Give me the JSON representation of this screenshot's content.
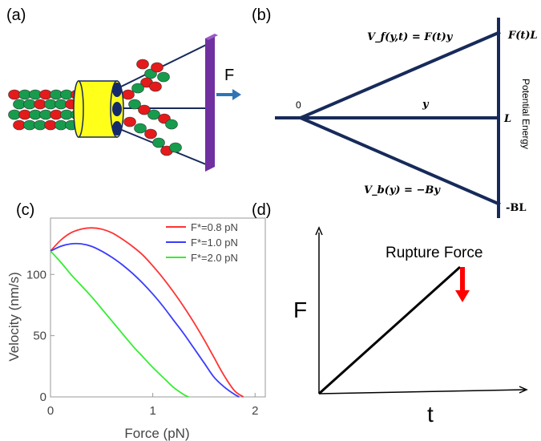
{
  "panels": {
    "a": {
      "label": "(a)",
      "force_label": "F"
    },
    "b": {
      "label": "(b)",
      "vf_label": "V_f(y,t) = F(t)y",
      "vb_label": "V_b(y) = −By",
      "origin_label": "0",
      "y_label": "y",
      "top_right_label": "F(t)L",
      "mid_right_label": "L",
      "bottom_right_label": "-BL",
      "axis_label": "Potential Energy"
    },
    "c": {
      "label": "(c)"
    },
    "d": {
      "label": "(d)",
      "y_axis_label": "F",
      "x_axis_label": "t",
      "annotation": "Rupture Force"
    }
  },
  "colors": {
    "navy": "#172a5a",
    "yellow": "#ffff1a",
    "red": "#e51a1a",
    "green": "#169c4c",
    "purple": "#7030a0",
    "arrow_blue": "#2e75b6",
    "arrow_red": "#ff0000"
  },
  "chart_data": {
    "type": "line",
    "title": "",
    "xlabel": "Force (pN)",
    "ylabel": "Velocity (nm/s)",
    "xlim": [
      0,
      2.1
    ],
    "ylim": [
      0,
      146
    ],
    "xticks": [
      0,
      1,
      2
    ],
    "yticks": [
      0,
      50,
      100
    ],
    "legend_position": "top-right",
    "series": [
      {
        "name": "F*=0.8 pN",
        "color": "#ff3333",
        "x": [
          0,
          0.1,
          0.2,
          0.3,
          0.4,
          0.5,
          0.6,
          0.7,
          0.8,
          0.9,
          1.0,
          1.1,
          1.2,
          1.3,
          1.4,
          1.5,
          1.6,
          1.7,
          1.8,
          1.885
        ],
        "y": [
          119,
          128,
          134,
          137,
          138,
          137,
          134,
          129,
          123,
          116,
          107,
          97,
          86,
          74,
          61,
          47,
          32,
          17,
          5,
          0
        ]
      },
      {
        "name": "F*=1.0 pN",
        "color": "#3b3bff",
        "x": [
          0,
          0.1,
          0.2,
          0.3,
          0.4,
          0.5,
          0.6,
          0.7,
          0.8,
          0.9,
          1.0,
          1.1,
          1.2,
          1.3,
          1.4,
          1.5,
          1.6,
          1.7,
          1.8,
          1.845
        ],
        "y": [
          119,
          123,
          125,
          125,
          123,
          119,
          114,
          108,
          101,
          93,
          84,
          74,
          63,
          52,
          40,
          28,
          16,
          8,
          2,
          0
        ]
      },
      {
        "name": "F*=2.0 pN",
        "color": "#33ee33",
        "x": [
          0,
          0.1,
          0.2,
          0.3,
          0.4,
          0.5,
          0.6,
          0.7,
          0.8,
          0.9,
          1.0,
          1.1,
          1.2,
          1.3,
          1.35
        ],
        "y": [
          119,
          110,
          100,
          91,
          82,
          72,
          62,
          52,
          42,
          33,
          24,
          16,
          8,
          2,
          0
        ]
      }
    ]
  }
}
